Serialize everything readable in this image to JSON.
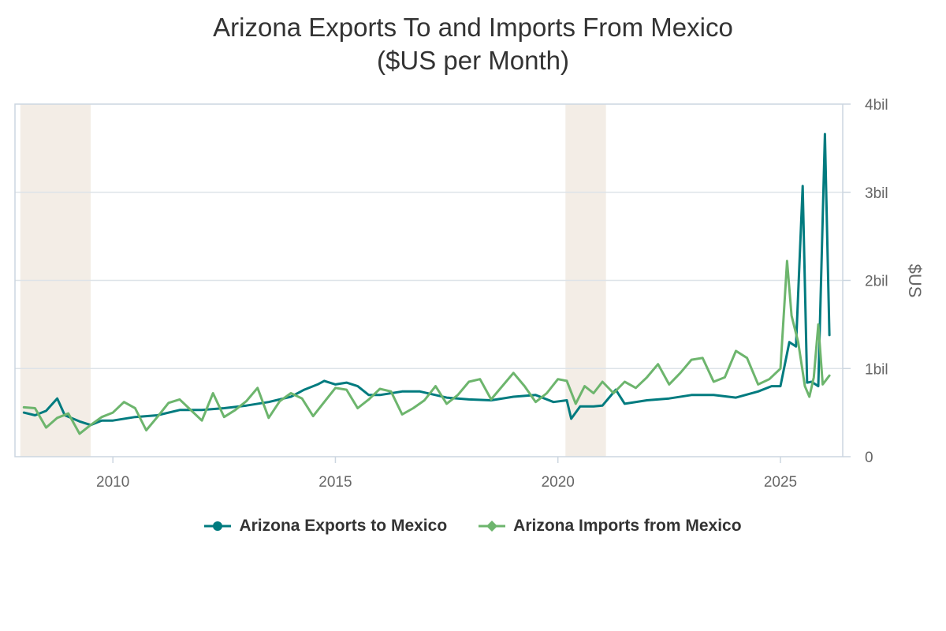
{
  "title_line1": "Arizona Exports To and Imports From Mexico",
  "title_line2": "($US per Month)",
  "chart_data": {
    "type": "line",
    "title": "Arizona Exports To and Imports From Mexico ($US per Month)",
    "ylabel": "$US",
    "xlim": [
      2007.8,
      2026.4
    ],
    "ylim": [
      0,
      4
    ],
    "y_unit": "billions of $US",
    "y_axis_side": "right",
    "grid": "horizontal",
    "legend_placement": "bottom",
    "x_ticks": [
      2010,
      2015,
      2020,
      2025
    ],
    "x_tick_labels": [
      "2010",
      "2015",
      "2020",
      "2025"
    ],
    "y_ticks": [
      0,
      1,
      2,
      3,
      4
    ],
    "y_tick_labels": [
      "0",
      "1bil",
      "2bil",
      "3bil",
      "4bil"
    ],
    "shaded_periods": [
      [
        2007.92,
        2009.5
      ],
      [
        2020.17,
        2021.08
      ]
    ],
    "series": [
      {
        "name": "Arizona Exports to Mexico",
        "color": "#007b7f",
        "marker": "circle",
        "x": [
          2008.0,
          2008.25,
          2008.5,
          2008.75,
          2008.92,
          2009.25,
          2009.5,
          2009.75,
          2010.0,
          2010.5,
          2011.0,
          2011.5,
          2012.0,
          2012.5,
          2013.0,
          2013.5,
          2014.0,
          2014.3,
          2014.6,
          2014.75,
          2015.0,
          2015.25,
          2015.5,
          2015.75,
          2016.0,
          2016.5,
          2016.9,
          2017.5,
          2018.0,
          2018.5,
          2019.0,
          2019.5,
          2019.9,
          2020.2,
          2020.3,
          2020.5,
          2020.8,
          2021.0,
          2021.3,
          2021.5,
          2022.0,
          2022.5,
          2023.0,
          2023.5,
          2024.0,
          2024.5,
          2024.8,
          2025.0,
          2025.2,
          2025.35,
          2025.5,
          2025.6,
          2025.7,
          2025.85,
          2026.0,
          2026.1
        ],
        "y": [
          0.5,
          0.47,
          0.52,
          0.66,
          0.47,
          0.4,
          0.36,
          0.41,
          0.41,
          0.45,
          0.47,
          0.53,
          0.53,
          0.55,
          0.58,
          0.62,
          0.68,
          0.76,
          0.82,
          0.86,
          0.82,
          0.84,
          0.8,
          0.7,
          0.7,
          0.74,
          0.74,
          0.67,
          0.65,
          0.64,
          0.68,
          0.7,
          0.62,
          0.64,
          0.43,
          0.57,
          0.57,
          0.58,
          0.76,
          0.6,
          0.64,
          0.66,
          0.7,
          0.7,
          0.67,
          0.74,
          0.8,
          0.8,
          1.3,
          1.25,
          3.07,
          0.84,
          0.85,
          0.8,
          3.66,
          1.38
        ]
      },
      {
        "name": "Arizona Imports from Mexico",
        "color": "#6db56d",
        "marker": "diamond",
        "x": [
          2008.0,
          2008.25,
          2008.5,
          2008.75,
          2009.0,
          2009.25,
          2009.5,
          2009.75,
          2010.0,
          2010.25,
          2010.5,
          2010.75,
          2011.0,
          2011.25,
          2011.5,
          2012.0,
          2012.25,
          2012.5,
          2012.75,
          2013.0,
          2013.25,
          2013.5,
          2013.75,
          2014.0,
          2014.25,
          2014.5,
          2014.75,
          2015.0,
          2015.25,
          2015.5,
          2015.75,
          2016.0,
          2016.25,
          2016.5,
          2016.75,
          2017.0,
          2017.25,
          2017.5,
          2017.75,
          2018.0,
          2018.25,
          2018.5,
          2018.75,
          2019.0,
          2019.25,
          2019.5,
          2019.75,
          2020.0,
          2020.2,
          2020.4,
          2020.6,
          2020.8,
          2021.0,
          2021.25,
          2021.5,
          2021.75,
          2022.0,
          2022.25,
          2022.5,
          2022.75,
          2023.0,
          2023.25,
          2023.5,
          2023.75,
          2024.0,
          2024.25,
          2024.5,
          2024.75,
          2025.0,
          2025.15,
          2025.25,
          2025.4,
          2025.55,
          2025.65,
          2025.75,
          2025.85,
          2025.95,
          2026.1
        ],
        "y": [
          0.56,
          0.55,
          0.33,
          0.44,
          0.49,
          0.26,
          0.36,
          0.45,
          0.5,
          0.62,
          0.55,
          0.3,
          0.45,
          0.61,
          0.65,
          0.41,
          0.72,
          0.45,
          0.53,
          0.63,
          0.78,
          0.44,
          0.63,
          0.72,
          0.66,
          0.46,
          0.62,
          0.78,
          0.76,
          0.55,
          0.65,
          0.77,
          0.74,
          0.48,
          0.55,
          0.64,
          0.8,
          0.6,
          0.7,
          0.85,
          0.88,
          0.65,
          0.8,
          0.95,
          0.8,
          0.62,
          0.72,
          0.88,
          0.86,
          0.6,
          0.8,
          0.72,
          0.85,
          0.72,
          0.85,
          0.78,
          0.9,
          1.05,
          0.82,
          0.95,
          1.1,
          1.12,
          0.85,
          0.9,
          1.2,
          1.12,
          0.82,
          0.88,
          1.0,
          2.22,
          1.6,
          1.3,
          0.8,
          0.68,
          0.9,
          1.5,
          0.82,
          0.92
        ]
      }
    ]
  }
}
